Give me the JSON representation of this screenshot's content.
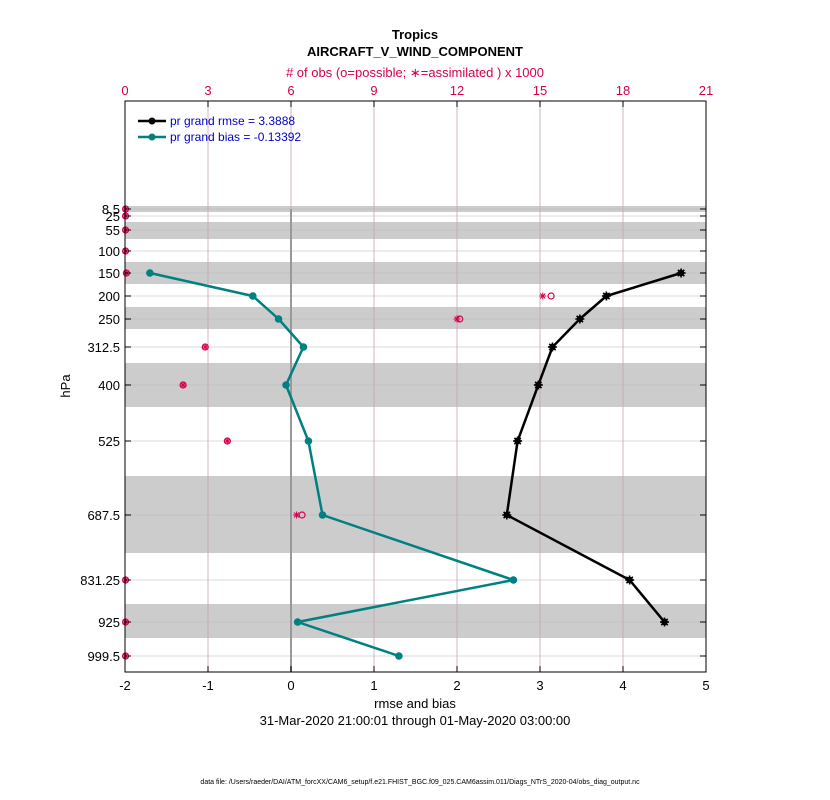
{
  "chart_data": {
    "type": "line",
    "title": "Tropics",
    "subtitle": "AIRCRAFT_V_WIND_COMPONENT",
    "top_axis_label": "# of obs (o=possible; ∗=assimilated ) x 1000",
    "xlabel": "rmse and bias",
    "date_range": "31-Mar-2020 21:00:01 through 01-May-2020 03:00:00",
    "ylabel": "hPa",
    "footnote": "data file: /Users/raeder/DAI/ATM_forcXX/CAM6_setup/f.e21.FHIST_BGC.f09_025.CAM6assim.011/Diags_NTrS_2020-04/obs_diag_output.nc",
    "xlim": [
      -2,
      5
    ],
    "xticks": [
      "-2",
      "-1",
      "0",
      "1",
      "2",
      "3",
      "4",
      "5"
    ],
    "xtick_values": [
      -2,
      -1,
      0,
      1,
      2,
      3,
      4,
      5
    ],
    "top_xlim": [
      0,
      21
    ],
    "top_xticks": [
      "0",
      "3",
      "6",
      "9",
      "12",
      "15",
      "18",
      "21"
    ],
    "top_xtick_values": [
      0,
      3,
      6,
      9,
      12,
      15,
      18,
      21
    ],
    "levels": [
      8.5,
      25,
      55,
      100,
      150,
      200,
      250,
      312.5,
      400,
      525,
      687.5,
      831.25,
      925,
      999.5
    ],
    "level_labels": [
      "8.5",
      "25",
      "55",
      "100",
      "150",
      "200",
      "250",
      "312.5",
      "400",
      "525",
      "687.5",
      "831.25",
      "925",
      "999.5"
    ],
    "series": [
      {
        "name": "pr grand rmse = 3.3888",
        "color": "#000000",
        "marker": "star",
        "levels": [
          150,
          200,
          250,
          312.5,
          400,
          525,
          687.5,
          831.25,
          925
        ],
        "values": [
          4.7,
          3.8,
          3.48,
          3.15,
          2.98,
          2.73,
          2.6,
          4.08,
          4.5
        ]
      },
      {
        "name": "pr grand bias = -0.13392",
        "color": "#008080",
        "marker": "circle",
        "levels": [
          150,
          200,
          250,
          312.5,
          400,
          525,
          687.5,
          831.25,
          925,
          999.5
        ],
        "values": [
          -1.7,
          -0.46,
          -0.15,
          0.15,
          -0.06,
          0.21,
          0.38,
          2.68,
          0.08,
          1.3
        ]
      }
    ],
    "obs_counts": {
      "color": "#d6004f",
      "levels": [
        8.5,
        25,
        55,
        100,
        150,
        200,
        250,
        312.5,
        400,
        525,
        687.5,
        831.25,
        925,
        999.5
      ],
      "possible": [
        0.02,
        0.02,
        0.02,
        0.02,
        0.05,
        15.4,
        12.1,
        2.9,
        2.1,
        3.7,
        6.4,
        0.02,
        0.02,
        0.02
      ],
      "assimilated": [
        0.02,
        0.02,
        0.02,
        0.02,
        0.05,
        15.1,
        12.0,
        2.9,
        2.1,
        3.7,
        6.2,
        0.02,
        0.02,
        0.02
      ]
    },
    "grid": true,
    "legend_position": "top-left"
  }
}
